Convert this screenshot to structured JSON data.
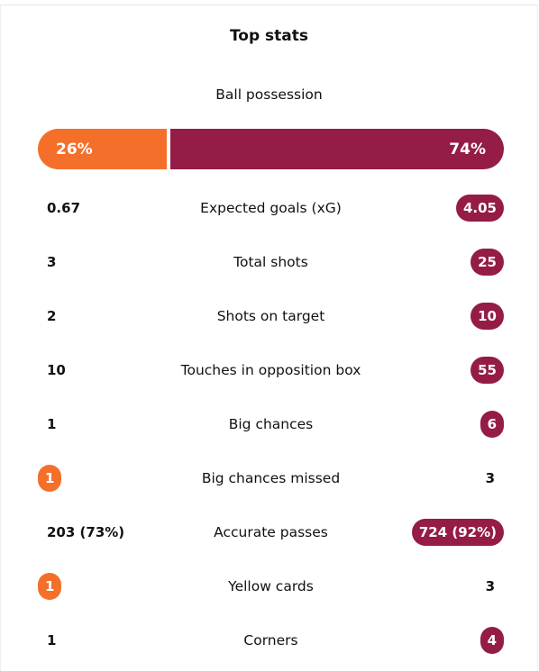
{
  "header": {
    "title": "Top stats"
  },
  "colors": {
    "home": "#f4702a",
    "away": "#941c46"
  },
  "possession": {
    "label": "Ball possession",
    "home": {
      "value": 26,
      "label": "26%"
    },
    "away": {
      "value": 74,
      "label": "74%"
    }
  },
  "stats": [
    {
      "label": "Expected goals (xG)",
      "home": "0.67",
      "away": "4.05",
      "highlight": "away"
    },
    {
      "label": "Total shots",
      "home": "3",
      "away": "25",
      "highlight": "away"
    },
    {
      "label": "Shots on target",
      "home": "2",
      "away": "10",
      "highlight": "away"
    },
    {
      "label": "Touches in opposition box",
      "home": "10",
      "away": "55",
      "highlight": "away"
    },
    {
      "label": "Big chances",
      "home": "1",
      "away": "6",
      "highlight": "away"
    },
    {
      "label": "Big chances missed",
      "home": "1",
      "away": "3",
      "highlight": "home"
    },
    {
      "label": "Accurate passes",
      "home": "203 (73%)",
      "away": "724 (92%)",
      "highlight": "away"
    },
    {
      "label": "Yellow cards",
      "home": "1",
      "away": "3",
      "highlight": "home"
    },
    {
      "label": "Corners",
      "home": "1",
      "away": "4",
      "highlight": "away"
    }
  ]
}
